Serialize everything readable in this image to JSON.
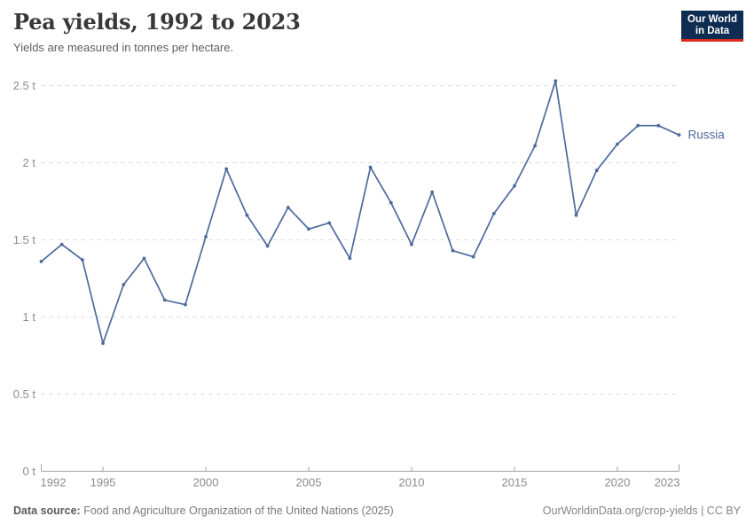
{
  "header": {
    "title": "Pea yields, 1992 to 2023",
    "subtitle": "Yields are measured in tonnes per hectare.",
    "logo": {
      "line1": "Our World",
      "line2": "in Data"
    }
  },
  "colors": {
    "line": "#4c6a9c",
    "entity_label": "#4c6a9c",
    "grid": "#d9d9d9",
    "axis": "#a3a3a3",
    "tick_label": "#8c8c8c",
    "logo_bg": "#0e2d52",
    "logo_bar": "#dc2b1c"
  },
  "chart_data": {
    "type": "line",
    "title": "Pea yields, 1992 to 2023",
    "ylabel": "tonnes per hectare",
    "ylim": [
      0,
      2.5
    ],
    "grid": "horizontal-dashed",
    "legend": "end-of-line-label",
    "x": [
      1992,
      1993,
      1994,
      1995,
      1996,
      1997,
      1998,
      1999,
      2000,
      2001,
      2002,
      2003,
      2004,
      2005,
      2006,
      2007,
      2008,
      2009,
      2010,
      2011,
      2012,
      2013,
      2014,
      2015,
      2016,
      2017,
      2018,
      2019,
      2020,
      2021,
      2022,
      2023
    ],
    "series": [
      {
        "name": "Russia",
        "color": "#4c6a9c",
        "values": [
          1.36,
          1.47,
          1.37,
          0.83,
          1.21,
          1.38,
          1.11,
          1.08,
          1.52,
          1.96,
          1.66,
          1.46,
          1.71,
          1.57,
          1.61,
          1.38,
          1.97,
          1.74,
          1.47,
          1.81,
          1.43,
          1.39,
          1.67,
          1.85,
          2.11,
          2.53,
          1.66,
          1.95,
          2.12,
          2.24,
          2.24,
          2.18
        ]
      }
    ],
    "yticks": [
      {
        "v": 0,
        "label": "0 t"
      },
      {
        "v": 0.5,
        "label": "0.5 t"
      },
      {
        "v": 1,
        "label": "1 t"
      },
      {
        "v": 1.5,
        "label": "1.5 t"
      },
      {
        "v": 2,
        "label": "2 t"
      },
      {
        "v": 2.5,
        "label": "2.5 t"
      }
    ],
    "xticks": [
      {
        "v": 1992,
        "label": "1992"
      },
      {
        "v": 1995,
        "label": "1995"
      },
      {
        "v": 2000,
        "label": "2000"
      },
      {
        "v": 2005,
        "label": "2005"
      },
      {
        "v": 2010,
        "label": "2010"
      },
      {
        "v": 2015,
        "label": "2015"
      },
      {
        "v": 2020,
        "label": "2020"
      },
      {
        "v": 2023,
        "label": "2023"
      }
    ]
  },
  "footer": {
    "source_label": "Data source:",
    "source_text": " Food and Agriculture Organization of the United Nations (2025)",
    "credit": "OurWorldinData.org/crop-yields | CC BY"
  }
}
